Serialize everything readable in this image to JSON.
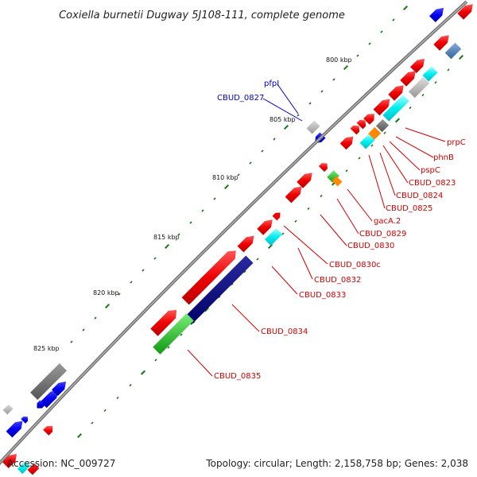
{
  "title": "Coxiella burnetii Dugway 5J108-111, complete genome",
  "footer": {
    "accession": "Accession: NC_009727",
    "summary": "Topology: circular; Length: 2,158,758 bp; Genes: 2,038"
  },
  "scale_labels": [
    "800 kbp",
    "805 kbp",
    "810 kbp",
    "815 kbp",
    "820 kbp",
    "825 kbp"
  ],
  "gene_labels_right": [
    "prpC",
    "phnB",
    "pspC",
    "CBUD_0823",
    "CBUD_0824",
    "CBUD_0825",
    "gacA.2",
    "CBUD_0829",
    "CBUD_0830",
    "CBUD_0830c",
    "CBUD_0832",
    "CBUD_0833",
    "CBUD_0834",
    "CBUD_0835"
  ],
  "gene_labels_left": [
    "pfpI",
    "CBUD_0827"
  ],
  "colors": {
    "backbone": "#888888",
    "forward_cds": "#ee0000",
    "reverse_cds": "#0000ee",
    "cyan_feature": "#00e5ee",
    "gray_feature": "#999999",
    "navy_feature": "#00007a",
    "green_feature": "#22bb22",
    "orange_feature": "#ff8800",
    "tick": "#117711",
    "label_red": "#d40000",
    "label_blue": "#0000cc"
  }
}
